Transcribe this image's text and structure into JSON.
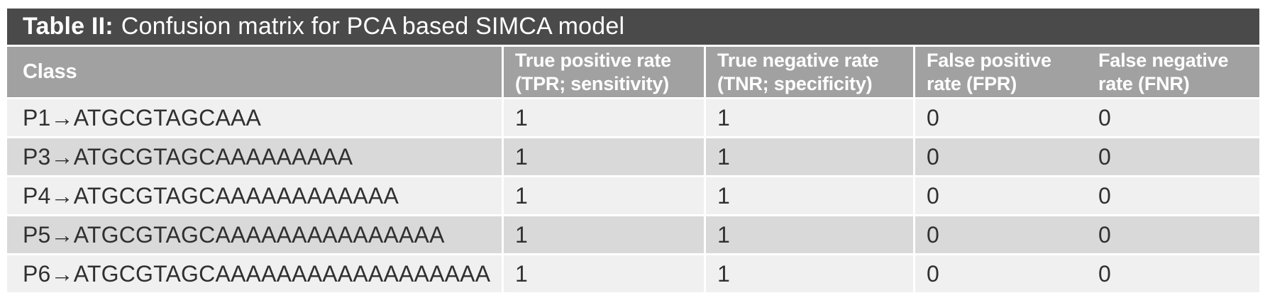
{
  "title": {
    "prefix": "Table II:",
    "text": "Confusion matrix for PCA based SIMCA model"
  },
  "columns": {
    "class": {
      "label": "Class"
    },
    "tpr": {
      "line1": "True positive rate",
      "line2": "(TPR; sensitivity)"
    },
    "tnr": {
      "line1": "True negative rate",
      "line2": "(TNR; specificity)"
    },
    "fpr": {
      "line1": "False positive",
      "line2": "rate (FPR)"
    },
    "fnr": {
      "line1": "False negative",
      "line2": "rate (FNR)"
    }
  },
  "rows": [
    {
      "class": "P1→ATGCGTAGCAAA",
      "tpr": "1",
      "tnr": "1",
      "fpr": "0",
      "fnr": "0"
    },
    {
      "class": "P3→ATGCGTAGCAAAAAAAAA",
      "tpr": "1",
      "tnr": "1",
      "fpr": "0",
      "fnr": "0"
    },
    {
      "class": "P4→ATGCGTAGCAAAAAAAAAAAA",
      "tpr": "1",
      "tnr": "1",
      "fpr": "0",
      "fnr": "0"
    },
    {
      "class": "P5→ATGCGTAGCAAAAAAAAAAAAAAA",
      "tpr": "1",
      "tnr": "1",
      "fpr": "0",
      "fnr": "0"
    },
    {
      "class": "P6→ATGCGTAGCAAAAAAAAAAAAAAAAAA",
      "tpr": "1",
      "tnr": "1",
      "fpr": "0",
      "fnr": "0"
    }
  ],
  "colors": {
    "title_bar_bg": "#4a4a4a",
    "header_bg": "#a1a1a1",
    "row_light": "#f0f0f0",
    "row_dark": "#d9d9d9",
    "header_text": "#ffffff",
    "data_text": "#303030"
  }
}
